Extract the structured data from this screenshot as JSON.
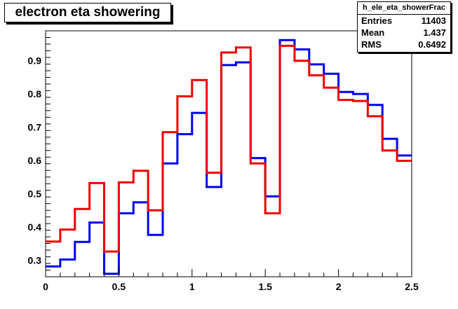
{
  "chart_data": {
    "type": "histogram",
    "title": "electron eta showering",
    "xlim": [
      0,
      2.5
    ],
    "ylim": [
      0.25,
      0.99
    ],
    "xticks": [
      "0",
      "0.5",
      "1",
      "1.5",
      "2",
      "2.5"
    ],
    "yticks": [
      "0.3",
      "0.4",
      "0.5",
      "0.6",
      "0.7",
      "0.8",
      "0.9"
    ],
    "bin_edges": [
      0,
      0.1,
      0.2,
      0.3,
      0.4,
      0.5,
      0.6,
      0.7,
      0.8,
      0.9,
      1.0,
      1.1,
      1.2,
      1.3,
      1.4,
      1.5,
      1.6,
      1.7,
      1.8,
      1.9,
      2.0,
      2.1,
      2.2,
      2.3,
      2.4,
      2.5
    ],
    "series": [
      {
        "color": "#0000ee",
        "values": [
          0.281,
          0.302,
          0.355,
          0.413,
          0.259,
          0.441,
          0.474,
          0.376,
          0.591,
          0.679,
          0.743,
          0.52,
          0.887,
          0.895,
          0.607,
          0.492,
          0.962,
          0.934,
          0.889,
          0.861,
          0.806,
          0.8,
          0.767,
          0.665,
          0.615
        ]
      },
      {
        "color": "#ee0000",
        "values": [
          0.356,
          0.392,
          0.454,
          0.532,
          0.326,
          0.534,
          0.569,
          0.45,
          0.685,
          0.793,
          0.842,
          0.563,
          0.925,
          0.94,
          0.591,
          0.441,
          0.945,
          0.9,
          0.856,
          0.819,
          0.782,
          0.779,
          0.733,
          0.63,
          0.599
        ]
      }
    ]
  },
  "stats": {
    "title": "h_ele_eta_showerFrac",
    "entries_label": "Entries",
    "entries_value": "11403",
    "mean_label": "Mean",
    "mean_value": "1.437",
    "rms_label": "RMS",
    "rms_value": "0.6492"
  }
}
